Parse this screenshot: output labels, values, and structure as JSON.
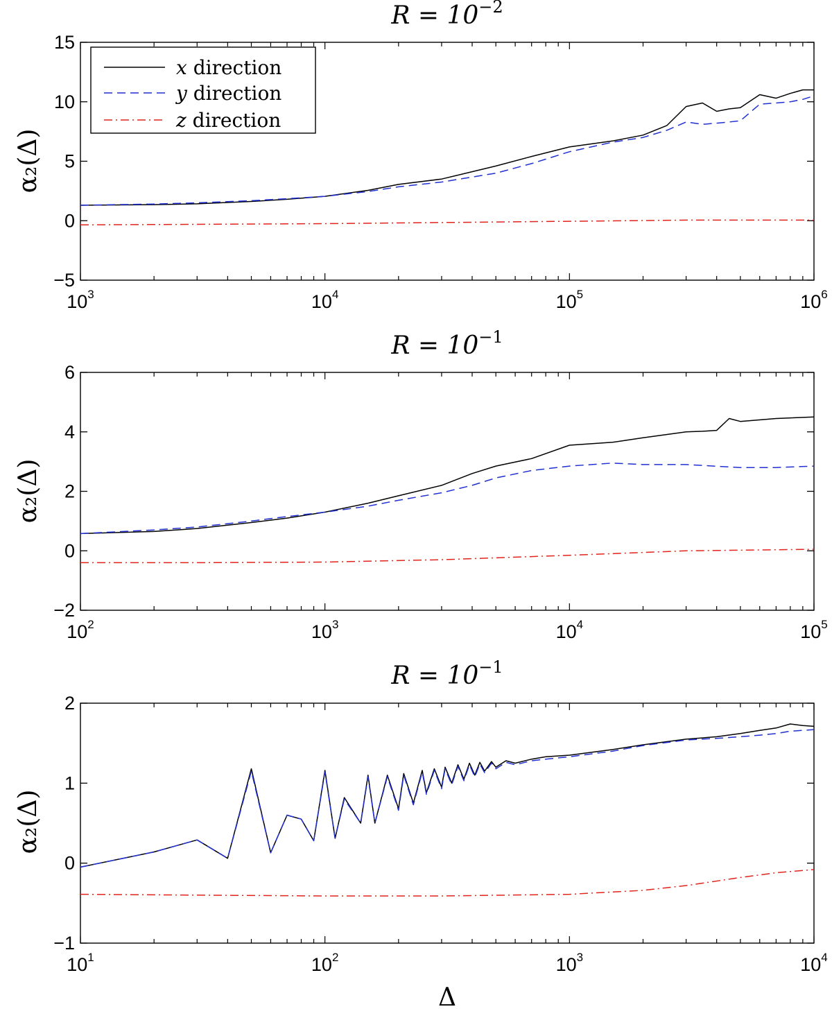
{
  "chart_data": [
    {
      "type": "line",
      "title": "R = 10",
      "title_exponent": "−2",
      "ylabel": "α₂(Δ)",
      "xlabel": "",
      "xscale": "log",
      "xlim": [
        1000,
        1000000
      ],
      "ylim": [
        -5,
        15
      ],
      "yticks": [
        -5,
        0,
        5,
        10,
        15
      ],
      "xtick_exponents": [
        "3",
        "4",
        "5",
        "6"
      ],
      "xtick_base": "10",
      "legend": {
        "placement": "top-left",
        "entries": [
          {
            "var": "x",
            "text": " direction",
            "series": "x"
          },
          {
            "var": "y",
            "text": " direction",
            "series": "y"
          },
          {
            "var": "z",
            "text": " direction",
            "series": "z"
          }
        ]
      },
      "series": [
        {
          "name": "x direction",
          "style": "solid",
          "color": "#000000",
          "x": [
            1000,
            2000,
            3000,
            5000,
            7000,
            10000,
            15000,
            20000,
            30000,
            50000,
            70000,
            100000,
            150000,
            200000,
            250000,
            300000,
            350000,
            400000,
            450000,
            500000,
            600000,
            700000,
            800000,
            900000,
            1000000
          ],
          "y": [
            1.3,
            1.35,
            1.42,
            1.62,
            1.8,
            2.05,
            2.55,
            3.05,
            3.5,
            4.6,
            5.4,
            6.2,
            6.7,
            7.2,
            8.0,
            9.6,
            9.9,
            9.2,
            9.4,
            9.5,
            10.6,
            10.3,
            10.7,
            11.0,
            11.0
          ]
        },
        {
          "name": "y direction",
          "style": "dashed",
          "color": "#1f2fd1",
          "x": [
            1000,
            2000,
            3000,
            5000,
            7000,
            10000,
            15000,
            20000,
            30000,
            50000,
            70000,
            100000,
            150000,
            200000,
            250000,
            300000,
            350000,
            400000,
            450000,
            500000,
            600000,
            700000,
            800000,
            900000,
            1000000
          ],
          "y": [
            1.3,
            1.4,
            1.5,
            1.68,
            1.85,
            2.05,
            2.45,
            2.85,
            3.25,
            4.0,
            4.8,
            5.8,
            6.6,
            7.0,
            7.6,
            8.3,
            8.1,
            8.2,
            8.3,
            8.4,
            9.8,
            9.9,
            10.0,
            10.2,
            10.5
          ]
        },
        {
          "name": "z direction",
          "style": "dashdot",
          "color": "#e0231b",
          "x": [
            1000,
            10000,
            100000,
            300000,
            1000000
          ],
          "y": [
            -0.35,
            -0.25,
            -0.05,
            0.05,
            0.05
          ]
        }
      ]
    },
    {
      "type": "line",
      "title": "R = 10",
      "title_exponent": "−1",
      "ylabel": "α₂(Δ)",
      "xlabel": "",
      "xscale": "log",
      "xlim": [
        100,
        100000
      ],
      "ylim": [
        -2,
        6
      ],
      "yticks": [
        -2,
        0,
        2,
        4,
        6
      ],
      "xtick_exponents": [
        "2",
        "3",
        "4",
        "5"
      ],
      "xtick_base": "10",
      "series": [
        {
          "name": "x direction",
          "style": "solid",
          "color": "#000000",
          "x": [
            100,
            200,
            300,
            500,
            700,
            1000,
            1500,
            2000,
            3000,
            4000,
            5000,
            7000,
            10000,
            15000,
            20000,
            30000,
            35000,
            40000,
            45000,
            50000,
            70000,
            100000
          ],
          "y": [
            0.58,
            0.65,
            0.75,
            0.95,
            1.1,
            1.3,
            1.6,
            1.85,
            2.2,
            2.6,
            2.85,
            3.1,
            3.55,
            3.65,
            3.8,
            4.0,
            4.02,
            4.05,
            4.45,
            4.35,
            4.45,
            4.5
          ]
        },
        {
          "name": "y direction",
          "style": "dashed",
          "color": "#1f2fd1",
          "x": [
            100,
            200,
            300,
            500,
            700,
            1000,
            1500,
            2000,
            3000,
            4000,
            5000,
            7000,
            10000,
            15000,
            20000,
            30000,
            50000,
            70000,
            100000
          ],
          "y": [
            0.58,
            0.7,
            0.8,
            1.0,
            1.15,
            1.3,
            1.5,
            1.7,
            1.95,
            2.2,
            2.45,
            2.7,
            2.85,
            2.95,
            2.9,
            2.9,
            2.8,
            2.8,
            2.85
          ]
        },
        {
          "name": "z direction",
          "style": "dashdot",
          "color": "#e0231b",
          "x": [
            100,
            300,
            1000,
            3000,
            10000,
            30000,
            100000
          ],
          "y": [
            -0.4,
            -0.4,
            -0.38,
            -0.3,
            -0.15,
            0.0,
            0.05
          ]
        }
      ]
    },
    {
      "type": "line",
      "title": "R = 10",
      "title_exponent": "−1",
      "ylabel": "α₂(Δ)",
      "xlabel": "Δ",
      "xscale": "log",
      "xlim": [
        10,
        10000
      ],
      "ylim": [
        -1,
        2
      ],
      "yticks": [
        -1,
        0,
        1,
        2
      ],
      "xtick_exponents": [
        "1",
        "2",
        "3",
        "4"
      ],
      "xtick_base": "10",
      "series": [
        {
          "name": "x direction",
          "style": "solid",
          "color": "#000000",
          "x": [
            10,
            20,
            30,
            40,
            50,
            60,
            70,
            80,
            90,
            100,
            110,
            120,
            140,
            150,
            160,
            180,
            200,
            210,
            230,
            250,
            260,
            280,
            300,
            310,
            330,
            350,
            370,
            390,
            410,
            430,
            450,
            480,
            500,
            550,
            600,
            700,
            800,
            1000,
            1500,
            2000,
            3000,
            4000,
            5000,
            6000,
            7000,
            8000,
            9000,
            10000
          ],
          "y": [
            -0.05,
            0.14,
            0.29,
            0.06,
            1.18,
            0.13,
            0.6,
            0.55,
            0.28,
            1.16,
            0.31,
            0.82,
            0.5,
            1.1,
            0.5,
            1.1,
            0.68,
            1.12,
            0.75,
            1.16,
            0.88,
            1.18,
            0.95,
            1.2,
            1.0,
            1.23,
            1.05,
            1.25,
            1.1,
            1.26,
            1.15,
            1.27,
            1.2,
            1.28,
            1.25,
            1.3,
            1.33,
            1.35,
            1.42,
            1.48,
            1.55,
            1.58,
            1.62,
            1.66,
            1.69,
            1.74,
            1.72,
            1.71
          ]
        },
        {
          "name": "y direction",
          "style": "dashed",
          "color": "#1f2fd1",
          "x": [
            10,
            20,
            30,
            40,
            50,
            60,
            70,
            80,
            90,
            100,
            110,
            120,
            140,
            150,
            160,
            180,
            200,
            210,
            230,
            250,
            260,
            280,
            300,
            310,
            330,
            350,
            370,
            390,
            410,
            430,
            450,
            480,
            500,
            550,
            600,
            700,
            800,
            1000,
            1500,
            2000,
            3000,
            4000,
            5000,
            6000,
            7000,
            8000,
            9000,
            10000
          ],
          "y": [
            -0.05,
            0.14,
            0.29,
            0.06,
            1.15,
            0.13,
            0.6,
            0.55,
            0.28,
            1.14,
            0.31,
            0.8,
            0.5,
            1.08,
            0.5,
            1.08,
            0.66,
            1.1,
            0.73,
            1.14,
            0.86,
            1.16,
            0.93,
            1.18,
            0.98,
            1.21,
            1.03,
            1.23,
            1.08,
            1.24,
            1.13,
            1.25,
            1.18,
            1.26,
            1.23,
            1.28,
            1.3,
            1.33,
            1.4,
            1.47,
            1.54,
            1.56,
            1.58,
            1.6,
            1.62,
            1.65,
            1.66,
            1.67
          ]
        },
        {
          "name": "z direction",
          "style": "dashdot",
          "color": "#e0231b",
          "x": [
            10,
            30,
            100,
            300,
            1000,
            2000,
            3000,
            5000,
            7000,
            10000
          ],
          "y": [
            -0.39,
            -0.4,
            -0.41,
            -0.41,
            -0.39,
            -0.34,
            -0.28,
            -0.18,
            -0.12,
            -0.08
          ]
        }
      ]
    }
  ]
}
